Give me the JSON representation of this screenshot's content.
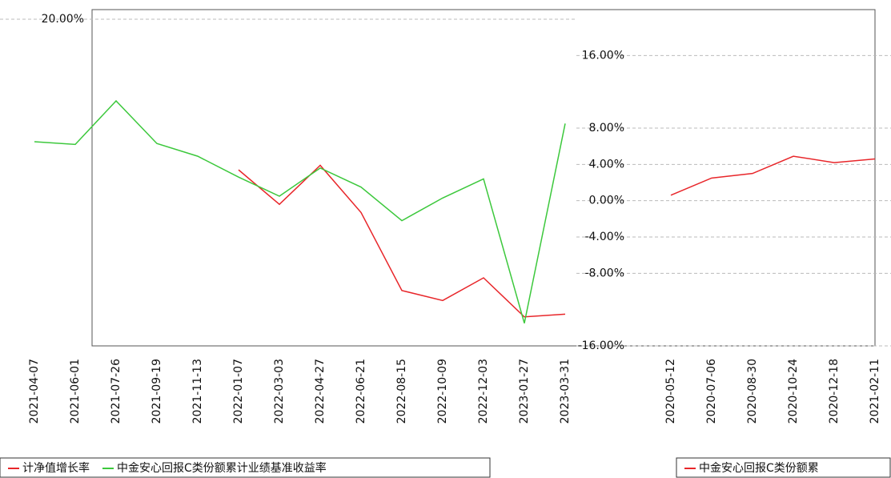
{
  "chart_data": [
    {
      "type": "line",
      "categories": [
        "2021-04-07",
        "2021-06-01",
        "2021-07-26",
        "2021-09-19",
        "2021-11-13",
        "2022-01-07",
        "2022-03-03",
        "2022-04-27",
        "2022-06-21",
        "2022-08-15",
        "2022-10-09",
        "2022-12-03",
        "2023-01-27",
        "2023-03-31"
      ],
      "series": [
        {
          "name": "计净值增长率",
          "color": "#e8262a",
          "values": [
            null,
            null,
            null,
            null,
            null,
            3.4,
            -0.4,
            3.9,
            -1.3,
            -9.9,
            -11,
            -8.5,
            -12.8,
            -12.5
          ]
        },
        {
          "name": "中金安心回报C类份额累计业绩基准收益率",
          "color": "#3cc83c",
          "values": [
            6.5,
            6.2,
            11,
            6.3,
            4.9,
            2.6,
            0.5,
            3.6,
            1.5,
            -2.2,
            0.3,
            2.4,
            -13.5,
            8.5
          ]
        }
      ],
      "ylim": [
        -16,
        20
      ],
      "yticks": [
        {
          "value": 20,
          "label": "20.00%"
        }
      ],
      "grid": true
    },
    {
      "type": "line",
      "categories": [
        "2020-05-12",
        "2020-07-06",
        "2020-08-30",
        "2020-10-24",
        "2020-12-18",
        "2021-02-11"
      ],
      "series": [
        {
          "name": "中金安心回报C类份额累",
          "color": "#e8262a",
          "values": [
            0.6,
            2.5,
            3,
            4.9,
            4.2,
            4.6
          ]
        }
      ],
      "ylim": [
        -16,
        20
      ],
      "yticks": [
        {
          "value": 16,
          "label": "16.00%"
        },
        {
          "value": 8,
          "label": "8.00%"
        },
        {
          "value": 4,
          "label": "4.00%"
        },
        {
          "value": 0,
          "label": "0.00%"
        },
        {
          "value": -4,
          "label": "-4.00%"
        },
        {
          "value": -8,
          "label": "-8.00%"
        },
        {
          "value": -16,
          "label": "-16.00%"
        }
      ],
      "grid": true
    }
  ]
}
